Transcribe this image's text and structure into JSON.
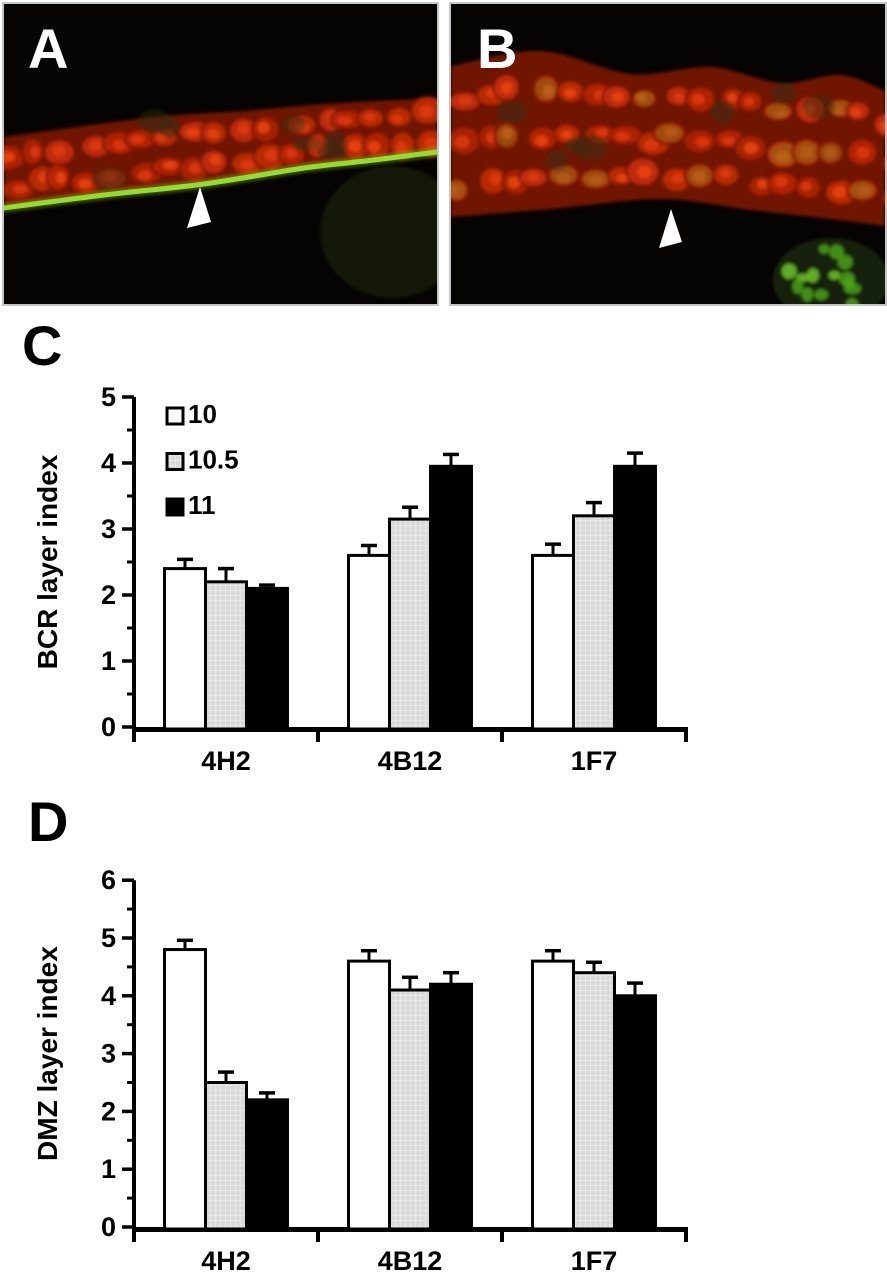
{
  "page": {
    "background": "#ffffff"
  },
  "micrographs": {
    "a": {
      "label": "A",
      "stain_red": "#bb2807",
      "stain_green": "#8fe02c",
      "arrowhead_color": "#ffffff"
    },
    "b": {
      "label": "B",
      "stain_red": "#bb2807",
      "stain_green": "#4ba11a",
      "arrowhead_color": "#ffffff"
    }
  },
  "chart_data": [
    {
      "id": "C",
      "panel_label": "C",
      "type": "bar",
      "title": "",
      "xlabel": "",
      "ylabel": "BCR layer index",
      "ylim": [
        0,
        5
      ],
      "ytick_labels": [
        "0",
        "1",
        "2",
        "3",
        "4",
        "5"
      ],
      "minor_tick_step": 0.5,
      "grid": false,
      "legend_position": "upper-left-inside",
      "categories": [
        "4H2",
        "4B12",
        "1F7"
      ],
      "series": [
        {
          "name": "10",
          "fill": "#ffffff",
          "pattern": false,
          "values": [
            2.4,
            2.6,
            2.6
          ],
          "errors": [
            0.14,
            0.15,
            0.17
          ]
        },
        {
          "name": "10.5",
          "fill": "#d9d9d9",
          "pattern": true,
          "values": [
            2.2,
            3.15,
            3.2
          ],
          "errors": [
            0.2,
            0.18,
            0.2
          ]
        },
        {
          "name": "11",
          "fill": "#000000",
          "pattern": false,
          "values": [
            2.1,
            3.95,
            3.95
          ],
          "errors": [
            0.05,
            0.18,
            0.2
          ]
        }
      ]
    },
    {
      "id": "D",
      "panel_label": "D",
      "type": "bar",
      "title": "",
      "xlabel": "",
      "ylabel": "DMZ layer index",
      "ylim": [
        0,
        6
      ],
      "ytick_labels": [
        "0",
        "1",
        "2",
        "3",
        "4",
        "5",
        "6"
      ],
      "minor_tick_step": 0.5,
      "grid": false,
      "legend_position": "none",
      "categories": [
        "4H2",
        "4B12",
        "1F7"
      ],
      "series": [
        {
          "name": "10",
          "fill": "#ffffff",
          "pattern": false,
          "values": [
            4.8,
            4.6,
            4.6
          ],
          "errors": [
            0.16,
            0.18,
            0.18
          ]
        },
        {
          "name": "10.5",
          "fill": "#d9d9d9",
          "pattern": true,
          "values": [
            2.5,
            4.1,
            4.4
          ],
          "errors": [
            0.18,
            0.22,
            0.18
          ]
        },
        {
          "name": "11",
          "fill": "#000000",
          "pattern": false,
          "values": [
            2.2,
            4.2,
            4.0
          ],
          "errors": [
            0.12,
            0.2,
            0.22
          ]
        }
      ]
    }
  ]
}
